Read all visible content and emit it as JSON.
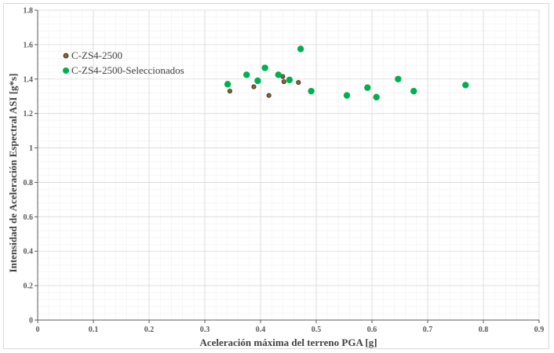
{
  "chart_data": {
    "type": "scatter",
    "xlabel": "Aceleración máxima del terreno PGA [g]",
    "ylabel": "Intensidad de Aceleración Espectral ASI [g*s]",
    "xlim": [
      0,
      0.9
    ],
    "ylim": [
      0,
      1.8
    ],
    "xticks": [
      "0",
      "0.1",
      "0.2",
      "0.3",
      "0.4",
      "0.5",
      "0.6",
      "0.7",
      "0.8",
      "0.9"
    ],
    "yticks": [
      "0",
      "0.2",
      "0.4",
      "0.6",
      "0.8",
      "1",
      "1.2",
      "1.4",
      "1.6",
      "1.8"
    ],
    "grid": true,
    "minor_grid": true,
    "legend_position": "top-left",
    "series": [
      {
        "name": "C-ZS4-2500",
        "color": "#8b6a2b",
        "points": [
          {
            "x": 0.345,
            "y": 1.33
          },
          {
            "x": 0.388,
            "y": 1.355
          },
          {
            "x": 0.415,
            "y": 1.305
          },
          {
            "x": 0.44,
            "y": 1.415
          },
          {
            "x": 0.442,
            "y": 1.385
          },
          {
            "x": 0.468,
            "y": 1.38
          }
        ]
      },
      {
        "name": "C-ZS4-2500-Seleccionados",
        "color": "#00b050",
        "points": [
          {
            "x": 0.341,
            "y": 1.37
          },
          {
            "x": 0.375,
            "y": 1.425
          },
          {
            "x": 0.395,
            "y": 1.39
          },
          {
            "x": 0.408,
            "y": 1.465
          },
          {
            "x": 0.432,
            "y": 1.425
          },
          {
            "x": 0.452,
            "y": 1.395
          },
          {
            "x": 0.472,
            "y": 1.575
          },
          {
            "x": 0.491,
            "y": 1.33
          },
          {
            "x": 0.555,
            "y": 1.305
          },
          {
            "x": 0.592,
            "y": 1.35
          },
          {
            "x": 0.608,
            "y": 1.295
          },
          {
            "x": 0.647,
            "y": 1.4
          },
          {
            "x": 0.675,
            "y": 1.33
          },
          {
            "x": 0.768,
            "y": 1.365
          }
        ]
      }
    ]
  }
}
